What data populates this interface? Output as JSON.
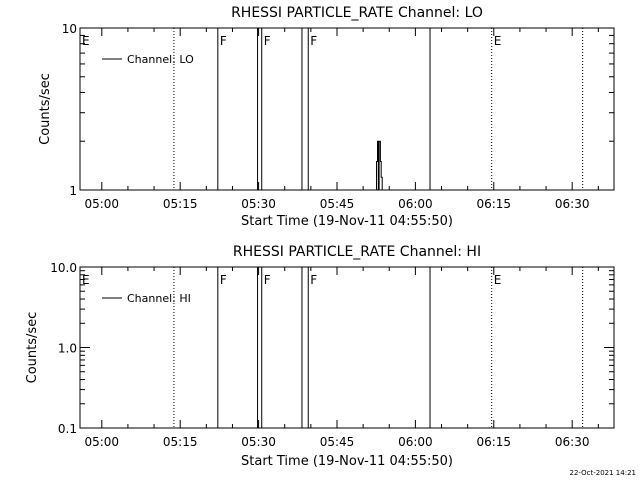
{
  "footer": {
    "date_stamp": "22-Oct-2021 14:21"
  },
  "chart_data": [
    {
      "type": "line",
      "title": "RHESSI PARTICLE_RATE Channel: LO",
      "xlabel": "Start Time (19-Nov-11 04:55:50)",
      "ylabel": "Counts/sec",
      "x_tick_labels": [
        "05:00",
        "05:15",
        "05:30",
        "05:45",
        "06:00",
        "06:15",
        "06:30"
      ],
      "x_tick_minutes": [
        300,
        315,
        330,
        345,
        360,
        375,
        390
      ],
      "xlim_minutes": [
        295.83,
        398
      ],
      "y_scale": "log",
      "ylim": [
        1,
        10
      ],
      "y_tick_labels": [
        "1",
        "10"
      ],
      "y_tick_values": [
        1,
        10
      ],
      "legend": {
        "label": "Channel: LO",
        "position": "top-left"
      },
      "grid": false,
      "series": [
        {
          "name": "Channel: LO",
          "x_minutes": [
            352.4,
            352.55,
            352.55,
            352.75,
            352.75,
            352.9,
            352.9,
            353.05,
            353.05,
            353.3,
            353.3,
            353.45,
            353.45,
            353.65,
            353.65,
            353.85
          ],
          "y": [
            1,
            1,
            1.5,
            1.5,
            2,
            2,
            1,
            1,
            2,
            2,
            1.5,
            1.5,
            1.2,
            1.2,
            1,
            1
          ]
        }
      ],
      "markers": [
        {
          "label": "E",
          "minute": 295.83,
          "style": "none"
        },
        {
          "label": "",
          "minute": 313.8,
          "style": "dotted"
        },
        {
          "label": "F",
          "minute": 322.2,
          "style": "solid"
        },
        {
          "label": "",
          "minute": 329.8,
          "style": "solid"
        },
        {
          "label": "F",
          "minute": 330.6,
          "style": "solid"
        },
        {
          "label": "",
          "minute": 338.3,
          "style": "solid"
        },
        {
          "label": "F",
          "minute": 339.5,
          "style": "solid"
        },
        {
          "label": "",
          "minute": 362.8,
          "style": "solid"
        },
        {
          "label": "E",
          "minute": 374.6,
          "style": "dotted"
        },
        {
          "label": "",
          "minute": 392.0,
          "style": "dotted"
        }
      ]
    },
    {
      "type": "line",
      "title": "RHESSI PARTICLE_RATE Channel: HI",
      "xlabel": "Start Time (19-Nov-11 04:55:50)",
      "ylabel": "Counts/sec",
      "x_tick_labels": [
        "05:00",
        "05:15",
        "05:30",
        "05:45",
        "06:00",
        "06:15",
        "06:30"
      ],
      "x_tick_minutes": [
        300,
        315,
        330,
        345,
        360,
        375,
        390
      ],
      "xlim_minutes": [
        295.83,
        398
      ],
      "y_scale": "log",
      "ylim": [
        0.1,
        10
      ],
      "y_tick_labels": [
        "0.1",
        "1.0",
        "10.0"
      ],
      "y_tick_values": [
        0.1,
        1,
        10
      ],
      "legend": {
        "label": "Channel: HI",
        "position": "top-left"
      },
      "grid": false,
      "series": [
        {
          "name": "Channel: HI",
          "x_minutes": [],
          "y": []
        }
      ],
      "markers": [
        {
          "label": "E",
          "minute": 295.83,
          "style": "none"
        },
        {
          "label": "",
          "minute": 313.8,
          "style": "dotted"
        },
        {
          "label": "F",
          "minute": 322.2,
          "style": "solid"
        },
        {
          "label": "",
          "minute": 329.8,
          "style": "solid"
        },
        {
          "label": "F",
          "minute": 330.6,
          "style": "solid"
        },
        {
          "label": "",
          "minute": 338.3,
          "style": "solid"
        },
        {
          "label": "F",
          "minute": 339.5,
          "style": "solid"
        },
        {
          "label": "",
          "minute": 362.8,
          "style": "solid"
        },
        {
          "label": "E",
          "minute": 374.6,
          "style": "dotted"
        },
        {
          "label": "",
          "minute": 392.0,
          "style": "dotted"
        }
      ]
    }
  ]
}
